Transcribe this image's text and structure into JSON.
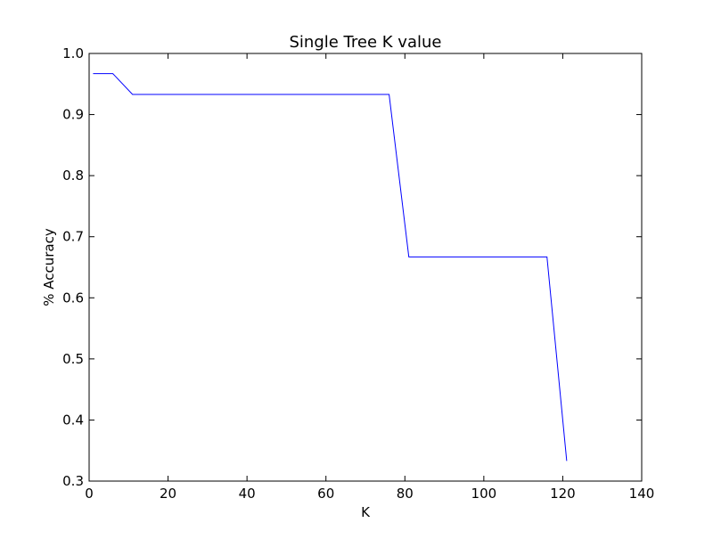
{
  "chart_data": {
    "type": "line",
    "title": "Single Tree K value",
    "xlabel": "K",
    "ylabel": "% Accuracy",
    "xlim": [
      0,
      140
    ],
    "ylim": [
      0.3,
      1.0
    ],
    "xticks": [
      0,
      20,
      40,
      60,
      80,
      100,
      120,
      140
    ],
    "xtick_labels": [
      "0",
      "20",
      "40",
      "60",
      "80",
      "100",
      "120",
      "140"
    ],
    "yticks": [
      0.3,
      0.4,
      0.5,
      0.6,
      0.7,
      0.8,
      0.9,
      1.0
    ],
    "ytick_labels": [
      "0.3",
      "0.4",
      "0.5",
      "0.6",
      "0.7",
      "0.8",
      "0.9",
      "1.0"
    ],
    "grid": false,
    "series": [
      {
        "color": "#0000ff",
        "x": [
          1,
          6,
          11,
          16,
          21,
          26,
          31,
          36,
          41,
          46,
          51,
          56,
          61,
          66,
          71,
          76,
          81,
          86,
          91,
          96,
          101,
          106,
          111,
          116,
          121
        ],
        "y": [
          0.967,
          0.967,
          0.933,
          0.933,
          0.933,
          0.933,
          0.933,
          0.933,
          0.933,
          0.933,
          0.933,
          0.933,
          0.933,
          0.933,
          0.933,
          0.933,
          0.667,
          0.667,
          0.667,
          0.667,
          0.667,
          0.667,
          0.667,
          0.667,
          0.333
        ]
      }
    ]
  }
}
